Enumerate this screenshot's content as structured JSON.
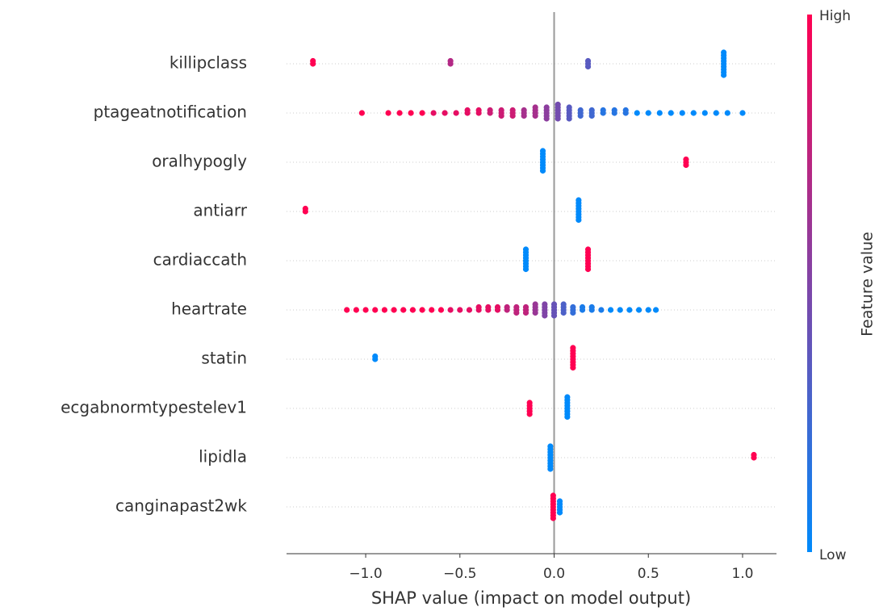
{
  "chart_data": {
    "type": "beeswarm",
    "xlabel": "SHAP value (impact on model output)",
    "xlim": [
      -1.42,
      1.18
    ],
    "xticks": [
      {
        "value": -1,
        "label": "−1.0"
      },
      {
        "value": -0.5,
        "label": "−0.5"
      },
      {
        "value": 0,
        "label": "0.0"
      },
      0.5,
      {
        "value": 1,
        "label": "1.0"
      }
    ],
    "colorbar": {
      "label": "Feature value",
      "high": "High",
      "low": "Low",
      "colors": [
        "#008afb",
        "#ff0052"
      ]
    },
    "features": [
      {
        "name": "killipclass",
        "shap": [
          -1.28,
          -1.28,
          -0.55,
          -0.55,
          0.18,
          0.18,
          0.18,
          0.9,
          0.9,
          0.9,
          0.9,
          0.9,
          0.9,
          0.9,
          0.9,
          0.9
        ],
        "feature_value": [
          1,
          1,
          0.7,
          0.7,
          0.35,
          0.35,
          0.35,
          0,
          0,
          0,
          0,
          0,
          0,
          0,
          0,
          0
        ]
      },
      {
        "name": "ptageatnotification",
        "shap": [
          -1.02,
          -0.88,
          -0.82,
          -0.76,
          -0.7,
          -0.64,
          -0.58,
          -0.52,
          -0.46,
          -0.46,
          -0.4,
          -0.4,
          -0.34,
          -0.34,
          -0.28,
          -0.28,
          -0.28,
          -0.22,
          -0.22,
          -0.22,
          -0.16,
          -0.16,
          -0.16,
          -0.1,
          -0.1,
          -0.1,
          -0.1,
          -0.04,
          -0.04,
          -0.04,
          -0.04,
          -0.04,
          0.02,
          0.02,
          0.02,
          0.02,
          0.02,
          0.02,
          0.08,
          0.08,
          0.08,
          0.08,
          0.08,
          0.14,
          0.14,
          0.14,
          0.2,
          0.2,
          0.2,
          0.26,
          0.26,
          0.32,
          0.32,
          0.38,
          0.38,
          0.44,
          0.5,
          0.56,
          0.62,
          0.68,
          0.74,
          0.8,
          0.86,
          0.92,
          1.0
        ],
        "feature_value": [
          1,
          1,
          1,
          1,
          1,
          0.9,
          0.9,
          0.9,
          0.9,
          0.9,
          0.9,
          0.9,
          0.8,
          0.8,
          0.8,
          0.8,
          0.8,
          0.8,
          0.8,
          0.8,
          0.65,
          0.65,
          0.65,
          0.65,
          0.65,
          0.65,
          0.65,
          0.55,
          0.55,
          0.55,
          0.55,
          0.55,
          0.45,
          0.45,
          0.45,
          0.45,
          0.45,
          0.45,
          0.35,
          0.35,
          0.35,
          0.35,
          0.35,
          0.25,
          0.25,
          0.25,
          0.25,
          0.25,
          0.25,
          0.15,
          0.15,
          0.15,
          0.15,
          0.15,
          0.15,
          0,
          0,
          0,
          0,
          0,
          0,
          0,
          0,
          0,
          0
        ]
      },
      {
        "name": "oralhypogly",
        "shap": [
          -0.06,
          -0.06,
          -0.06,
          -0.06,
          -0.06,
          -0.06,
          -0.06,
          -0.06,
          0.7,
          0.7,
          0.7
        ],
        "feature_value": [
          0,
          0,
          0,
          0,
          0,
          0,
          0,
          0,
          1,
          1,
          1
        ]
      },
      {
        "name": "antiarr",
        "shap": [
          -1.32,
          -1.32,
          0.13,
          0.13,
          0.13,
          0.13,
          0.13,
          0.13,
          0.13,
          0.13
        ],
        "feature_value": [
          1,
          1,
          0,
          0,
          0,
          0,
          0,
          0,
          0,
          0
        ]
      },
      {
        "name": "cardiaccath",
        "shap": [
          -0.15,
          -0.15,
          -0.15,
          -0.15,
          -0.15,
          -0.15,
          -0.15,
          -0.15,
          0.18,
          0.18,
          0.18,
          0.18,
          0.18,
          0.18,
          0.18,
          0.18
        ],
        "feature_value": [
          0,
          0,
          0,
          0,
          0,
          0,
          0,
          0,
          1,
          1,
          1,
          1,
          1,
          1,
          1,
          1
        ]
      },
      {
        "name": "heartrate",
        "shap": [
          -1.1,
          -1.05,
          -1.0,
          -0.95,
          -0.9,
          -0.85,
          -0.8,
          -0.75,
          -0.7,
          -0.65,
          -0.6,
          -0.55,
          -0.5,
          -0.45,
          -0.4,
          -0.4,
          -0.35,
          -0.35,
          -0.3,
          -0.3,
          -0.25,
          -0.25,
          -0.2,
          -0.2,
          -0.2,
          -0.15,
          -0.15,
          -0.15,
          -0.1,
          -0.1,
          -0.1,
          -0.1,
          -0.05,
          -0.05,
          -0.05,
          -0.05,
          -0.05,
          0,
          0,
          0,
          0,
          0,
          0.05,
          0.05,
          0.05,
          0.05,
          0.1,
          0.1,
          0.1,
          0.15,
          0.15,
          0.2,
          0.2,
          0.25,
          0.3,
          0.35,
          0.4,
          0.45,
          0.5,
          0.54
        ],
        "feature_value": [
          1,
          1,
          1,
          1,
          1,
          1,
          1,
          1,
          1,
          1,
          1,
          0.9,
          0.9,
          0.9,
          0.9,
          0.9,
          0.9,
          0.9,
          0.9,
          0.9,
          0.75,
          0.75,
          0.75,
          0.75,
          0.75,
          0.75,
          0.75,
          0.75,
          0.6,
          0.6,
          0.6,
          0.6,
          0.5,
          0.5,
          0.5,
          0.5,
          0.5,
          0.4,
          0.4,
          0.4,
          0.4,
          0.4,
          0.3,
          0.3,
          0.3,
          0.3,
          0.2,
          0.2,
          0.2,
          0.1,
          0.1,
          0.1,
          0.1,
          0.1,
          0,
          0,
          0,
          0,
          0,
          0
        ]
      },
      {
        "name": "statin",
        "shap": [
          -0.95,
          -0.95,
          0.1,
          0.1,
          0.1,
          0.1,
          0.1,
          0.1,
          0.1,
          0.1
        ],
        "feature_value": [
          0,
          0,
          1,
          1,
          1,
          1,
          1,
          1,
          1,
          1
        ]
      },
      {
        "name": "ecgabnormtypestelev1",
        "shap": [
          -0.13,
          -0.13,
          -0.13,
          -0.13,
          -0.13,
          0.07,
          0.07,
          0.07,
          0.07,
          0.07,
          0.07,
          0.07,
          0.07
        ],
        "feature_value": [
          1,
          1,
          1,
          1,
          1,
          0,
          0,
          0,
          0,
          0,
          0,
          0,
          0
        ]
      },
      {
        "name": "lipidla",
        "shap": [
          -0.02,
          -0.02,
          -0.02,
          -0.02,
          -0.02,
          -0.02,
          -0.02,
          -0.02,
          -0.02,
          1.06,
          1.06
        ],
        "feature_value": [
          0,
          0,
          0,
          0,
          0,
          0,
          0,
          0,
          0,
          1,
          1
        ]
      },
      {
        "name": "canginapast2wk",
        "shap": [
          -0.005,
          -0.005,
          -0.005,
          -0.005,
          -0.005,
          -0.005,
          -0.005,
          -0.005,
          -0.005,
          0.03,
          0.03,
          0.03,
          0.03,
          0.03
        ],
        "feature_value": [
          1,
          1,
          1,
          1,
          1,
          1,
          1,
          1,
          1,
          0,
          0,
          0,
          0,
          0
        ]
      }
    ]
  }
}
